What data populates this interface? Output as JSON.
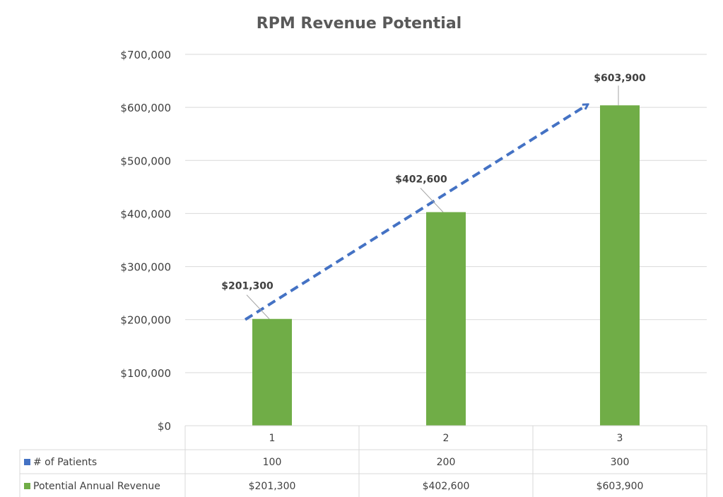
{
  "chart_data": {
    "type": "bar",
    "title": "RPM Revenue Potential",
    "categories": [
      "1",
      "2",
      "3"
    ],
    "ylim": [
      0,
      700000
    ],
    "y_tick_labels": [
      "$0",
      "$100,000",
      "$200,000",
      "$300,000",
      "$400,000",
      "$500,000",
      "$600,000",
      "$700,000"
    ],
    "y_tick_values": [
      0,
      100000,
      200000,
      300000,
      400000,
      500000,
      600000,
      700000
    ],
    "grid": true,
    "series": [
      {
        "name": "# of Patients",
        "color": "#4472c4",
        "values": [
          100,
          200,
          300
        ],
        "display": [
          "100",
          "200",
          "300"
        ],
        "plotted": false
      },
      {
        "name": "Potential Annual Revenue",
        "color": "#70ad47",
        "values": [
          201300,
          402600,
          603900
        ],
        "display": [
          "$201,300",
          "$402,600",
          "$603,900"
        ],
        "data_labels": [
          "$201,300",
          "$402,600",
          "$603,900"
        ],
        "plotted": true
      }
    ],
    "annotations": [
      {
        "type": "dashed-arrow",
        "color": "#4472c4",
        "from": [
          1,
          200000
        ],
        "to": [
          3,
          605000
        ]
      }
    ],
    "legend": "data-table-below"
  }
}
